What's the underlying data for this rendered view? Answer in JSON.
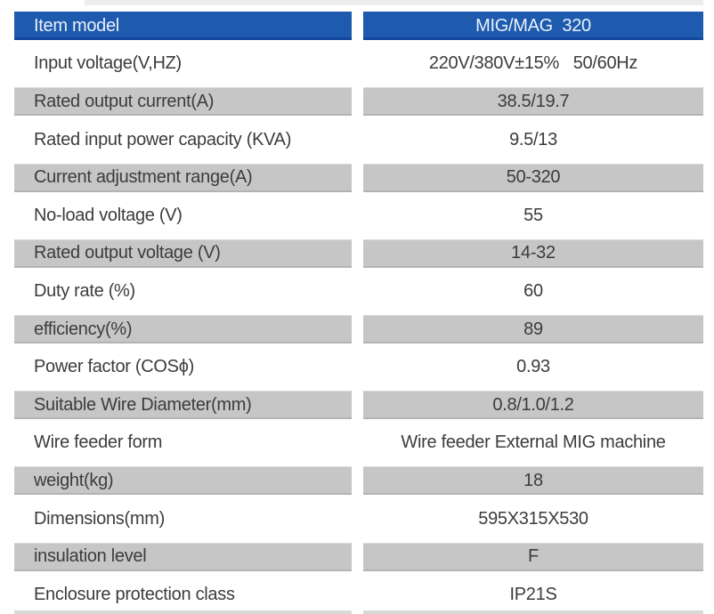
{
  "colors": {
    "header_blue": "#1e5bae",
    "header_blue_edge": "#12479c",
    "band_gray": "#c6c6c6",
    "text_dark": "#3c3c3c",
    "header_text": "#e9f0fa"
  },
  "table": {
    "header": {
      "label": "Item model",
      "value": "MIG/MAG  320"
    },
    "rows": [
      {
        "label": "Input voltage(V,HZ)",
        "value": "220V/380V±15%   50/60Hz"
      },
      {
        "label": "Rated output current(A)",
        "value": "38.5/19.7"
      },
      {
        "label": "Rated input power capacity (KVA)",
        "value": "9.5/13"
      },
      {
        "label": "Current adjustment range(A)",
        "value": "50-320"
      },
      {
        "label": "No-load voltage (V)",
        "value": "55"
      },
      {
        "label": "Rated output voltage (V)",
        "value": "14-32"
      },
      {
        "label": "Duty rate (%)",
        "value": "60"
      },
      {
        "label": "efficiency(%)",
        "value": "89"
      },
      {
        "label": "Power factor (COSϕ)",
        "value": "0.93"
      },
      {
        "label": "Suitable Wire Diameter(mm)",
        "value": "0.8/1.0/1.2"
      },
      {
        "label": "Wire feeder form",
        "value": "Wire feeder External MIG machine"
      },
      {
        "label": "weight(kg)",
        "value": "18"
      },
      {
        "label": "Dimensions(mm)",
        "value": "595X315X530"
      },
      {
        "label": "insulation level",
        "value": "F"
      },
      {
        "label": "Enclosure protection class",
        "value": "IP21S"
      }
    ]
  }
}
